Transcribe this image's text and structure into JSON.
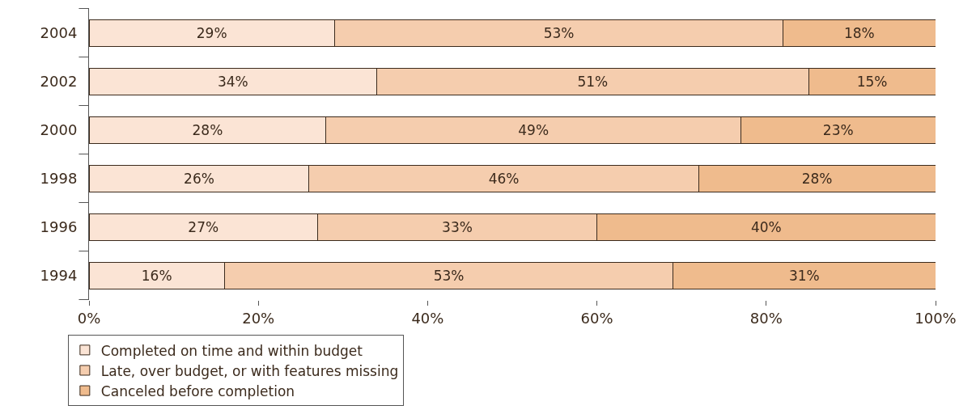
{
  "chart_data": {
    "type": "bar",
    "orientation": "horizontal",
    "stacked": true,
    "categories": [
      "2004",
      "2002",
      "2000",
      "1998",
      "1996",
      "1994"
    ],
    "series": [
      {
        "name": "Completed on time and within budget",
        "color": "#fbe4d5",
        "values": [
          29,
          34,
          28,
          26,
          27,
          16
        ],
        "value_labels": [
          "29%",
          "34%",
          "28%",
          "26%",
          "27%",
          "16%"
        ]
      },
      {
        "name": "Late, over budget, or with features missing",
        "color": "#f5cdae",
        "values": [
          53,
          51,
          49,
          46,
          33,
          53
        ],
        "value_labels": [
          "53%",
          "51%",
          "49%",
          "46%",
          "33%",
          "53%"
        ]
      },
      {
        "name": "Canceled before completion",
        "color": "#efbb8d",
        "values": [
          18,
          15,
          23,
          28,
          40,
          31
        ],
        "value_labels": [
          "18%",
          "15%",
          "23%",
          "28%",
          "40%",
          "31%"
        ]
      }
    ],
    "xlim": [
      0,
      100
    ],
    "xticks": [
      {
        "value": 0,
        "label": "0%"
      },
      {
        "value": 20,
        "label": "20%"
      },
      {
        "value": 40,
        "label": "40%"
      },
      {
        "value": 60,
        "label": "60%"
      },
      {
        "value": 80,
        "label": "80%"
      },
      {
        "value": 100,
        "label": "100%"
      }
    ],
    "grid": false,
    "legend": "bottom left"
  }
}
